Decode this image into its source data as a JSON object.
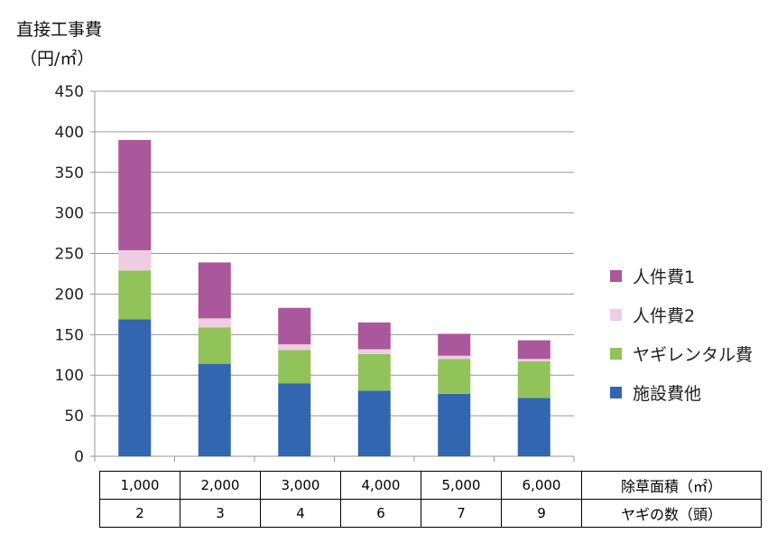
{
  "chart_data": {
    "type": "bar",
    "stacked": true,
    "title": "直接工事費",
    "ylabel": "（円/㎡）",
    "ylim": [
      0,
      450
    ],
    "yticks": [
      0,
      50,
      100,
      150,
      200,
      250,
      300,
      350,
      400,
      450
    ],
    "grid": true,
    "legend_position": "right",
    "categories": [
      "1,000",
      "2,000",
      "3,000",
      "4,000",
      "5,000",
      "6,000"
    ],
    "series": [
      {
        "name": "施設費他",
        "color": "#3366b0",
        "values": [
          169,
          114,
          90,
          81,
          77,
          72
        ]
      },
      {
        "name": "ヤギレンタル費",
        "color": "#92c25a",
        "values": [
          60,
          45,
          41,
          45,
          43,
          45
        ]
      },
      {
        "name": "人件費2",
        "color": "#eecde2",
        "values": [
          25,
          11,
          7,
          6,
          4,
          3
        ]
      },
      {
        "name": "人件費1",
        "color": "#ab579b",
        "values": [
          136,
          69,
          45,
          33,
          27,
          23
        ]
      }
    ],
    "table": {
      "rows": [
        {
          "label": "除草面積（㎡）",
          "values": [
            "1,000",
            "2,000",
            "3,000",
            "4,000",
            "5,000",
            "6,000"
          ]
        },
        {
          "label": "ヤギの数（頭）",
          "values": [
            "2",
            "3",
            "4",
            "6",
            "7",
            "9"
          ]
        }
      ]
    }
  }
}
